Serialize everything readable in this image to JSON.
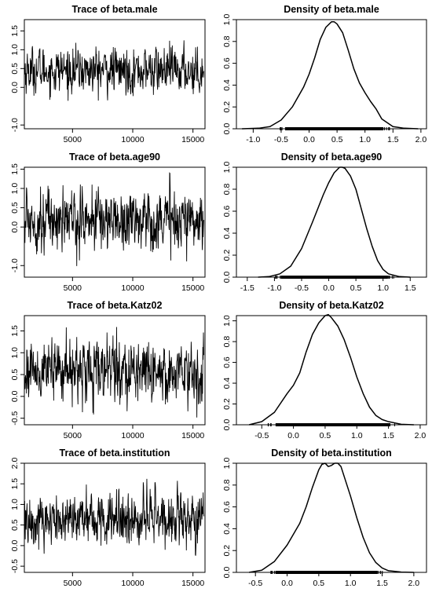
{
  "chart_data": [
    {
      "id": "trace-male",
      "type": "line",
      "title": "Trace of beta.male",
      "xlabel": "",
      "ylabel": "",
      "xlim": [
        1000,
        16000
      ],
      "ylim": [
        -1.1,
        1.8
      ],
      "xticks": [
        5000,
        10000,
        15000
      ],
      "xtick_labels": [
        "5000",
        "10000",
        "15000"
      ],
      "yticks": [
        -1.0,
        0.0,
        0.5,
        1.0,
        1.5
      ],
      "ytick_labels": [
        "-1.0",
        "0.0",
        "0.5",
        "1.0",
        "1.5"
      ],
      "trace": {
        "mean": 0.45,
        "sd": 0.3,
        "min": -0.95,
        "max": 1.75,
        "n": 600
      }
    },
    {
      "id": "density-male",
      "type": "line",
      "title": "Density of beta.male",
      "xlabel": "",
      "ylabel": "",
      "xlim": [
        -1.3,
        2.1
      ],
      "ylim": [
        0,
        1.0
      ],
      "xticks": [
        -1.0,
        -0.5,
        0.0,
        0.5,
        1.0,
        1.5,
        2.0
      ],
      "xtick_labels": [
        "-1.0",
        "-0.5",
        "0.0",
        "0.5",
        "1.0",
        "1.5",
        "2.0"
      ],
      "yticks": [
        0.0,
        0.2,
        0.4,
        0.6,
        0.8,
        1.0
      ],
      "ytick_labels": [
        "0.0",
        "0.2",
        "0.4",
        "0.6",
        "0.8",
        "1.0"
      ],
      "x": [
        -1.2,
        -0.9,
        -0.7,
        -0.5,
        -0.3,
        -0.1,
        0.0,
        0.1,
        0.2,
        0.3,
        0.4,
        0.45,
        0.5,
        0.6,
        0.7,
        0.8,
        0.9,
        1.0,
        1.1,
        1.2,
        1.3,
        1.5,
        1.7,
        1.95
      ],
      "y": [
        0.0,
        0.005,
        0.02,
        0.08,
        0.2,
        0.38,
        0.5,
        0.65,
        0.82,
        0.93,
        0.98,
        0.98,
        0.96,
        0.88,
        0.72,
        0.55,
        0.42,
        0.33,
        0.25,
        0.18,
        0.09,
        0.02,
        0.005,
        0.0
      ],
      "rug": [
        -0.55,
        1.45
      ]
    },
    {
      "id": "trace-age90",
      "type": "line",
      "title": "Trace of beta.age90",
      "xlabel": "",
      "ylabel": "",
      "xlim": [
        1000,
        16000
      ],
      "ylim": [
        -1.3,
        1.55
      ],
      "xticks": [
        5000,
        10000,
        15000
      ],
      "xtick_labels": [
        "5000",
        "10000",
        "15000"
      ],
      "yticks": [
        -1.0,
        0.0,
        0.5,
        1.0,
        1.5
      ],
      "ytick_labels": [
        "-1.0",
        "0.0",
        "0.5",
        "1.0",
        "1.5"
      ],
      "trace": {
        "mean": 0.2,
        "sd": 0.4,
        "min": -1.2,
        "max": 1.5,
        "n": 600
      }
    },
    {
      "id": "density-age90",
      "type": "line",
      "title": "Density of beta.age90",
      "xlabel": "",
      "ylabel": "",
      "xlim": [
        -1.7,
        1.8
      ],
      "ylim": [
        0,
        1.0
      ],
      "xticks": [
        -1.5,
        -1.0,
        -0.5,
        0.0,
        0.5,
        1.0,
        1.5
      ],
      "xtick_labels": [
        "-1.5",
        "-1.0",
        "-0.5",
        "0.0",
        "0.5",
        "1.0",
        "1.5"
      ],
      "yticks": [
        0.0,
        0.2,
        0.4,
        0.6,
        0.8,
        1.0
      ],
      "ytick_labels": [
        "0.0",
        "0.2",
        "0.4",
        "0.6",
        "0.8",
        "1.0"
      ],
      "x": [
        -1.3,
        -1.1,
        -0.9,
        -0.7,
        -0.5,
        -0.3,
        -0.1,
        0.0,
        0.1,
        0.2,
        0.25,
        0.3,
        0.4,
        0.5,
        0.6,
        0.7,
        0.8,
        0.9,
        1.0,
        1.1,
        1.3,
        1.5
      ],
      "y": [
        0.0,
        0.005,
        0.03,
        0.1,
        0.26,
        0.5,
        0.75,
        0.86,
        0.95,
        1.0,
        1.0,
        0.99,
        0.92,
        0.8,
        0.62,
        0.44,
        0.28,
        0.15,
        0.07,
        0.03,
        0.005,
        0.0
      ],
      "rug": [
        -1.0,
        1.2
      ]
    },
    {
      "id": "trace-katz02",
      "type": "line",
      "title": "Trace of beta.Katz02",
      "xlabel": "",
      "ylabel": "",
      "xlim": [
        1000,
        16000
      ],
      "ylim": [
        -0.65,
        1.85
      ],
      "xticks": [
        5000,
        10000,
        15000
      ],
      "xtick_labels": [
        "5000",
        "10000",
        "15000"
      ],
      "yticks": [
        -0.5,
        0.0,
        0.5,
        1.0,
        1.5
      ],
      "ytick_labels": [
        "-0.5",
        "0.0",
        "0.5",
        "1.0",
        "1.5"
      ],
      "trace": {
        "mean": 0.6,
        "sd": 0.35,
        "min": -0.55,
        "max": 1.75,
        "n": 600
      }
    },
    {
      "id": "density-katz02",
      "type": "line",
      "title": "Density of beta.Katz02",
      "xlabel": "",
      "ylabel": "",
      "xlim": [
        -0.9,
        2.1
      ],
      "ylim": [
        0,
        1.05
      ],
      "xticks": [
        -0.5,
        0.0,
        0.5,
        1.0,
        1.5,
        2.0
      ],
      "xtick_labels": [
        "-0.5",
        "0.0",
        "0.5",
        "1.0",
        "1.5",
        "2.0"
      ],
      "yticks": [
        0.0,
        0.2,
        0.4,
        0.6,
        0.8,
        1.0
      ],
      "ytick_labels": [
        "0.0",
        "0.2",
        "0.4",
        "0.6",
        "0.8",
        "1.0"
      ],
      "x": [
        -0.7,
        -0.5,
        -0.3,
        -0.1,
        0.0,
        0.1,
        0.2,
        0.3,
        0.4,
        0.5,
        0.55,
        0.6,
        0.7,
        0.8,
        0.9,
        1.0,
        1.1,
        1.2,
        1.3,
        1.4,
        1.5,
        1.7,
        1.9
      ],
      "y": [
        0.0,
        0.03,
        0.12,
        0.3,
        0.38,
        0.5,
        0.7,
        0.87,
        0.98,
        1.05,
        1.06,
        1.03,
        0.95,
        0.82,
        0.65,
        0.46,
        0.3,
        0.17,
        0.09,
        0.05,
        0.03,
        0.005,
        0.0
      ],
      "rug": [
        -0.4,
        1.65
      ]
    },
    {
      "id": "trace-institution",
      "type": "line",
      "title": "Trace of beta.institution",
      "xlabel": "",
      "ylabel": "",
      "xlim": [
        1000,
        16000
      ],
      "ylim": [
        -0.65,
        2.0
      ],
      "xticks": [
        5000,
        10000,
        15000
      ],
      "xtick_labels": [
        "5000",
        "10000",
        "15000"
      ],
      "yticks": [
        -0.5,
        0.0,
        0.5,
        1.0,
        1.5,
        2.0
      ],
      "ytick_labels": [
        "-0.5",
        "0.0",
        "0.5",
        "1.0",
        "1.5",
        "2.0"
      ],
      "trace": {
        "mean": 0.65,
        "sd": 0.33,
        "min": -0.5,
        "max": 1.95,
        "n": 600
      }
    },
    {
      "id": "density-institution",
      "type": "line",
      "title": "Density of beta.institution",
      "xlabel": "",
      "ylabel": "",
      "xlim": [
        -0.8,
        2.2
      ],
      "ylim": [
        0,
        1.0
      ],
      "xticks": [
        -0.5,
        0.0,
        0.5,
        1.0,
        1.5,
        2.0
      ],
      "xtick_labels": [
        "-0.5",
        "0.0",
        "0.5",
        "1.0",
        "1.5",
        "2.0"
      ],
      "yticks": [
        0.0,
        0.2,
        0.4,
        0.6,
        0.8,
        1.0
      ],
      "ytick_labels": [
        "0.0",
        "0.2",
        "0.4",
        "0.6",
        "0.8",
        "1.0"
      ],
      "x": [
        -0.6,
        -0.4,
        -0.2,
        0.0,
        0.1,
        0.2,
        0.3,
        0.4,
        0.5,
        0.55,
        0.6,
        0.65,
        0.7,
        0.75,
        0.8,
        0.85,
        0.9,
        1.0,
        1.1,
        1.2,
        1.3,
        1.4,
        1.5,
        1.6,
        1.8,
        2.0
      ],
      "y": [
        0.0,
        0.02,
        0.1,
        0.25,
        0.35,
        0.45,
        0.6,
        0.78,
        0.94,
        0.99,
        1.0,
        0.97,
        0.98,
        1.0,
        1.0,
        0.97,
        0.88,
        0.7,
        0.5,
        0.32,
        0.18,
        0.09,
        0.04,
        0.015,
        0.003,
        0.0
      ],
      "rug": [
        -0.3,
        1.55
      ]
    }
  ]
}
